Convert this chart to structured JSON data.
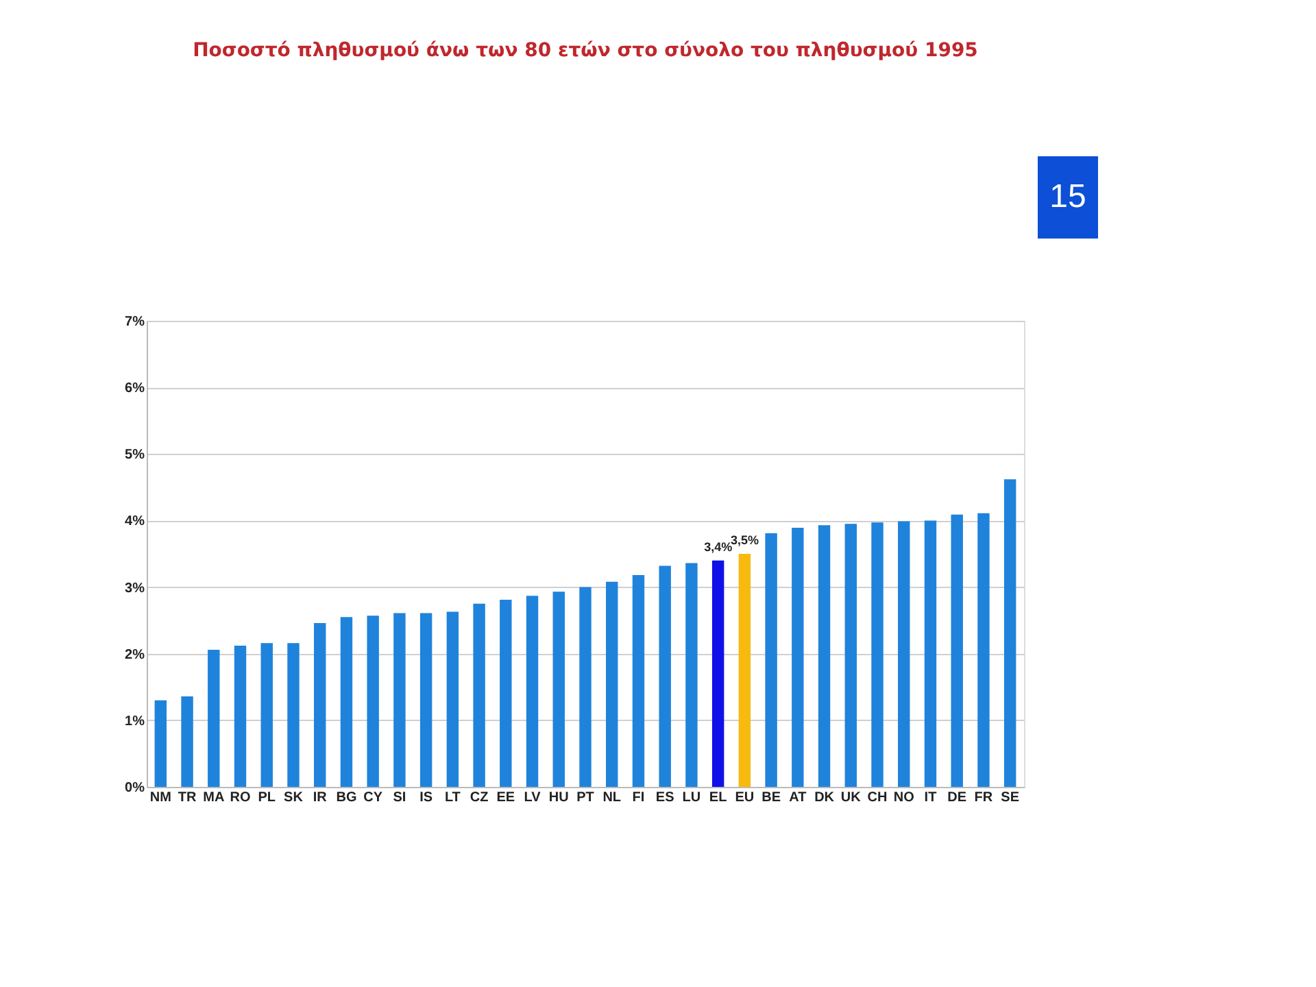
{
  "chart_data": {
    "type": "bar",
    "title": "Ποσοστό πληθυσμού άνω των 80 ετών στο σύνολο του πληθυσμού 1995",
    "categories": [
      "NM",
      "TR",
      "MA",
      "RO",
      "PL",
      "SK",
      "IR",
      "BG",
      "CY",
      "SI",
      "IS",
      "LT",
      "CZ",
      "EE",
      "LV",
      "HU",
      "PT",
      "NL",
      "FI",
      "ES",
      "LU",
      "EL",
      "EU",
      "BE",
      "AT",
      "DK",
      "UK",
      "CH",
      "NO",
      "IT",
      "DE",
      "FR",
      "SE"
    ],
    "values": [
      1.3,
      1.36,
      2.06,
      2.12,
      2.16,
      2.16,
      2.46,
      2.55,
      2.57,
      2.61,
      2.61,
      2.63,
      2.75,
      2.81,
      2.87,
      2.93,
      3.0,
      3.08,
      3.18,
      3.32,
      3.36,
      3.4,
      3.5,
      3.81,
      3.89,
      3.93,
      3.95,
      3.97,
      3.99,
      4.0,
      4.09,
      4.11,
      4.62
    ],
    "colors": [
      "#1f83dc",
      "#1f83dc",
      "#1f83dc",
      "#1f83dc",
      "#1f83dc",
      "#1f83dc",
      "#1f83dc",
      "#1f83dc",
      "#1f83dc",
      "#1f83dc",
      "#1f83dc",
      "#1f83dc",
      "#1f83dc",
      "#1f83dc",
      "#1f83dc",
      "#1f83dc",
      "#1f83dc",
      "#1f83dc",
      "#1f83dc",
      "#1f83dc",
      "#1f83dc",
      "#1010e8",
      "#f7bb10",
      "#1f83dc",
      "#1f83dc",
      "#1f83dc",
      "#1f83dc",
      "#1f83dc",
      "#1f83dc",
      "#1f83dc",
      "#1f83dc",
      "#1f83dc",
      "#1f83dc"
    ],
    "value_labels": [
      null,
      null,
      null,
      null,
      null,
      null,
      null,
      null,
      null,
      null,
      null,
      null,
      null,
      null,
      null,
      null,
      null,
      null,
      null,
      null,
      null,
      "3,4%",
      "3,5%",
      null,
      null,
      null,
      null,
      null,
      null,
      null,
      null,
      null,
      null
    ],
    "ylim": [
      0,
      7
    ],
    "yticks": [
      {
        "value": 0,
        "label": "0%"
      },
      {
        "value": 1,
        "label": "1%"
      },
      {
        "value": 2,
        "label": "2%"
      },
      {
        "value": 3,
        "label": "3%"
      },
      {
        "value": 4,
        "label": "4%"
      },
      {
        "value": 5,
        "label": "5%"
      },
      {
        "value": 6,
        "label": "6%"
      },
      {
        "value": 7,
        "label": "7%"
      }
    ],
    "grid": "y",
    "annotations": [
      "15"
    ]
  }
}
